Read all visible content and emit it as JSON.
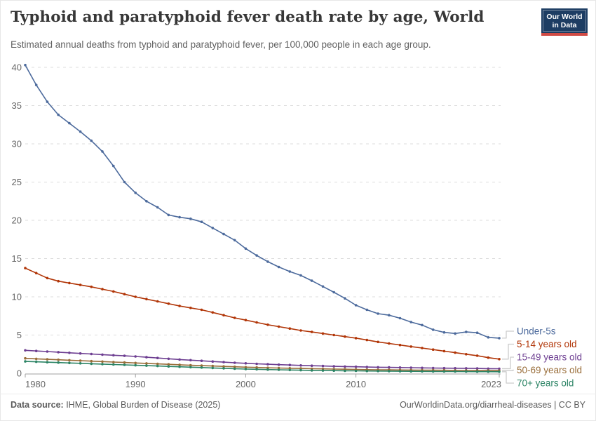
{
  "header": {
    "title": "Typhoid and paratyphoid fever death rate by age, World",
    "subtitle": "Estimated annual deaths from typhoid and paratyphoid fever, per 100,000 people in each age group.",
    "logo": {
      "line1": "Our World",
      "line2": "in Data"
    }
  },
  "chart_data": {
    "type": "line",
    "title": "Typhoid and paratyphoid fever death rate by age, World",
    "xlabel": "",
    "ylabel": "",
    "ylim": [
      0,
      40
    ],
    "y_ticks": [
      0,
      5,
      10,
      15,
      20,
      25,
      30,
      35,
      40
    ],
    "x_ticks": [
      1980,
      1990,
      2000,
      2010,
      2023
    ],
    "grid": "horizontal-dashed",
    "legend_position": "right-of-line-ends",
    "x": [
      1980,
      1981,
      1982,
      1983,
      1984,
      1985,
      1986,
      1987,
      1988,
      1989,
      1990,
      1991,
      1992,
      1993,
      1994,
      1995,
      1996,
      1997,
      1998,
      1999,
      2000,
      2001,
      2002,
      2003,
      2004,
      2005,
      2006,
      2007,
      2008,
      2009,
      2010,
      2011,
      2012,
      2013,
      2014,
      2015,
      2016,
      2017,
      2018,
      2019,
      2020,
      2021,
      2022,
      2023
    ],
    "series": [
      {
        "name": "Under-5s",
        "color": "#4C6A9C",
        "values": [
          40.3,
          37.7,
          35.5,
          33.8,
          32.7,
          31.6,
          30.4,
          29.0,
          27.1,
          25.0,
          23.6,
          22.5,
          21.7,
          20.7,
          20.4,
          20.2,
          19.8,
          19.0,
          18.2,
          17.4,
          16.3,
          15.4,
          14.6,
          13.9,
          13.3,
          12.8,
          12.1,
          11.35,
          10.6,
          9.8,
          8.9,
          8.3,
          7.8,
          7.6,
          7.2,
          6.7,
          6.3,
          5.7,
          5.35,
          5.2,
          5.4,
          5.3,
          4.7,
          4.6
        ]
      },
      {
        "name": "5-14 years old",
        "color": "#B13507",
        "values": [
          13.75,
          13.1,
          12.45,
          12.05,
          11.8,
          11.55,
          11.3,
          11.0,
          10.7,
          10.35,
          10.0,
          9.7,
          9.4,
          9.1,
          8.8,
          8.55,
          8.3,
          7.95,
          7.6,
          7.25,
          6.95,
          6.65,
          6.35,
          6.1,
          5.85,
          5.6,
          5.4,
          5.2,
          5.0,
          4.8,
          4.6,
          4.35,
          4.1,
          3.9,
          3.7,
          3.5,
          3.3,
          3.1,
          2.9,
          2.7,
          2.5,
          2.3,
          2.05,
          1.85
        ]
      },
      {
        "name": "15-49 years old",
        "color": "#6D3E91",
        "values": [
          3.0,
          2.92,
          2.84,
          2.76,
          2.68,
          2.6,
          2.52,
          2.44,
          2.36,
          2.28,
          2.2,
          2.1,
          2.0,
          1.9,
          1.8,
          1.72,
          1.63,
          1.54,
          1.46,
          1.38,
          1.3,
          1.24,
          1.18,
          1.13,
          1.08,
          1.03,
          0.99,
          0.95,
          0.91,
          0.88,
          0.85,
          0.82,
          0.79,
          0.77,
          0.75,
          0.73,
          0.71,
          0.69,
          0.67,
          0.66,
          0.65,
          0.63,
          0.61,
          0.6
        ]
      },
      {
        "name": "50-69 years old",
        "color": "#996D39",
        "values": [
          1.95,
          1.89,
          1.83,
          1.77,
          1.71,
          1.65,
          1.59,
          1.53,
          1.47,
          1.41,
          1.35,
          1.29,
          1.23,
          1.17,
          1.11,
          1.05,
          1.0,
          0.95,
          0.9,
          0.85,
          0.8,
          0.76,
          0.72,
          0.69,
          0.66,
          0.63,
          0.6,
          0.58,
          0.55,
          0.53,
          0.5,
          0.48,
          0.46,
          0.45,
          0.43,
          0.42,
          0.41,
          0.4,
          0.39,
          0.38,
          0.37,
          0.36,
          0.36,
          0.35
        ]
      },
      {
        "name": "70+ years old",
        "color": "#2C8465",
        "values": [
          1.55,
          1.5,
          1.45,
          1.4,
          1.35,
          1.3,
          1.25,
          1.2,
          1.15,
          1.1,
          1.05,
          1.0,
          0.95,
          0.9,
          0.85,
          0.8,
          0.75,
          0.7,
          0.65,
          0.6,
          0.55,
          0.52,
          0.49,
          0.46,
          0.43,
          0.4,
          0.38,
          0.36,
          0.35,
          0.33,
          0.32,
          0.3,
          0.29,
          0.28,
          0.27,
          0.26,
          0.25,
          0.24,
          0.23,
          0.23,
          0.22,
          0.21,
          0.21,
          0.2
        ]
      }
    ]
  },
  "footer": {
    "source_prefix": "Data source:",
    "source_rest": " IHME, Global Burden of Disease (2025)",
    "link_text": "OurWorldinData.org/diarrheal-diseases | CC BY"
  }
}
